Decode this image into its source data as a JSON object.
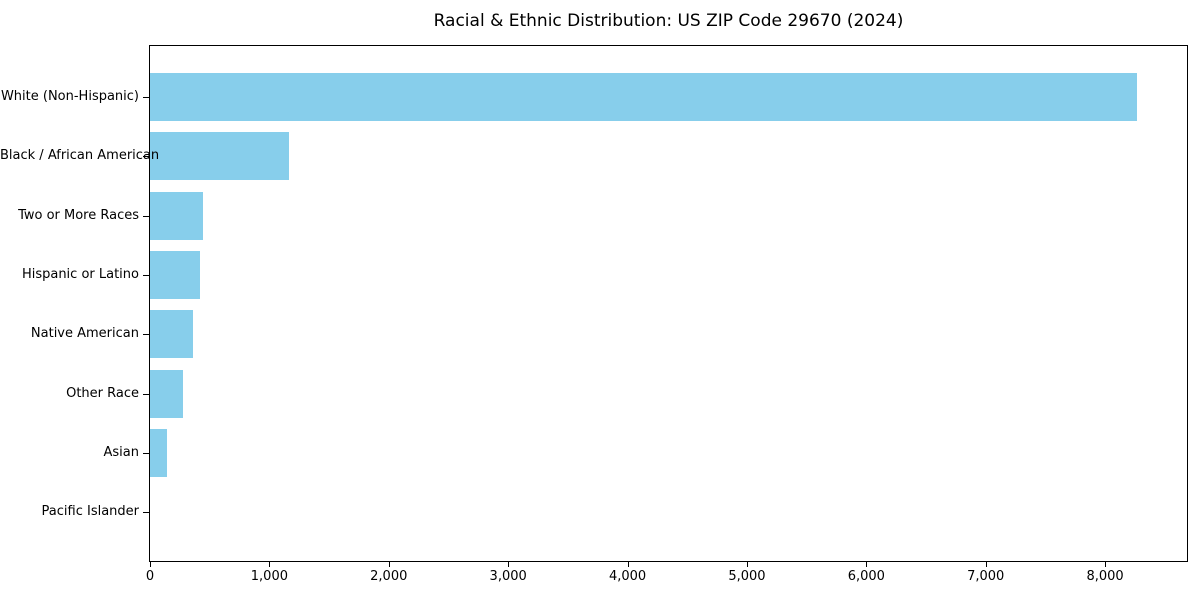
{
  "chart_data": {
    "type": "bar",
    "orientation": "horizontal",
    "title": "Racial & Ethnic Distribution: US ZIP Code 29670 (2024)",
    "categories": [
      "White (Non-Hispanic)",
      "Black / African American",
      "Two or More Races",
      "Hispanic or Latino",
      "Native American",
      "Other Race",
      "Asian",
      "Pacific Islander"
    ],
    "values": [
      8265,
      1165,
      440,
      420,
      360,
      280,
      140,
      0
    ],
    "xlabel": "",
    "ylabel": "",
    "xlim": [
      0,
      8686
    ],
    "x_ticks": [
      0,
      1000,
      2000,
      3000,
      4000,
      5000,
      6000,
      7000,
      8000
    ],
    "x_tick_labels": [
      "0",
      "1,000",
      "2,000",
      "3,000",
      "4,000",
      "5,000",
      "6,000",
      "7,000",
      "8,000"
    ],
    "bar_color": "#87CEEB",
    "background_color": "#ffffff",
    "axis_color": "#000000",
    "grid": false,
    "legend": null
  }
}
